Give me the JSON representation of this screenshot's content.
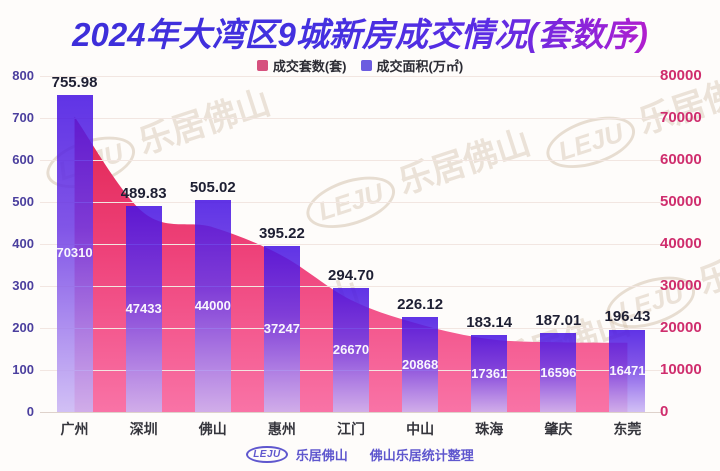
{
  "title": "2024年大湾区9城新房成交情况(套数序)",
  "legend": [
    {
      "label": "成交套数(套)",
      "color": "#d6517e"
    },
    {
      "label": "成交面积(万㎡)",
      "color": "#6c5ce0"
    }
  ],
  "watermark": {
    "logo_text": "LEJU",
    "text": "乐居佛山"
  },
  "footer": {
    "logo_text": "LEJU",
    "brand": "乐居佛山",
    "credit": "佛山乐居统计整理"
  },
  "chart_data": {
    "type": "bar",
    "subtype": "dual-axis bar + smooth area combo",
    "title": "2024年大湾区9城新房成交情况(套数序)",
    "categories": [
      "广州",
      "深圳",
      "佛山",
      "惠州",
      "江门",
      "中山",
      "珠海",
      "肇庆",
      "东莞"
    ],
    "series": [
      {
        "name": "成交套数(套)",
        "type": "area",
        "axis": "right",
        "color_top": "#e02552",
        "color_bottom": "#f973a6",
        "values": [
          70310,
          47433,
          44000,
          37247,
          26670,
          20868,
          17361,
          16596,
          16471
        ],
        "labels": [
          "70310",
          "47433",
          "44000",
          "37247",
          "26670",
          "20868",
          "17361",
          "16596",
          "16471"
        ]
      },
      {
        "name": "成交面积(万㎡)",
        "type": "bar",
        "axis": "left",
        "color_top": "#4613e2",
        "color_bottom": "#cab6f4",
        "values": [
          755.98,
          489.83,
          505.02,
          395.22,
          294.7,
          226.12,
          183.14,
          187.01,
          196.43
        ],
        "labels": [
          "755.98",
          "489.83",
          "505.02",
          "395.22",
          "294.70",
          "226.12",
          "183.14",
          "187.01",
          "196.43"
        ]
      }
    ],
    "left_axis": {
      "min": 0,
      "max": 800,
      "step": 100,
      "label_color": "#4b3f9e"
    },
    "right_axis": {
      "min": 0,
      "max": 80000,
      "step": 10000,
      "label_color": "#cf2d6d"
    },
    "grid": true,
    "legend_position": "top"
  }
}
